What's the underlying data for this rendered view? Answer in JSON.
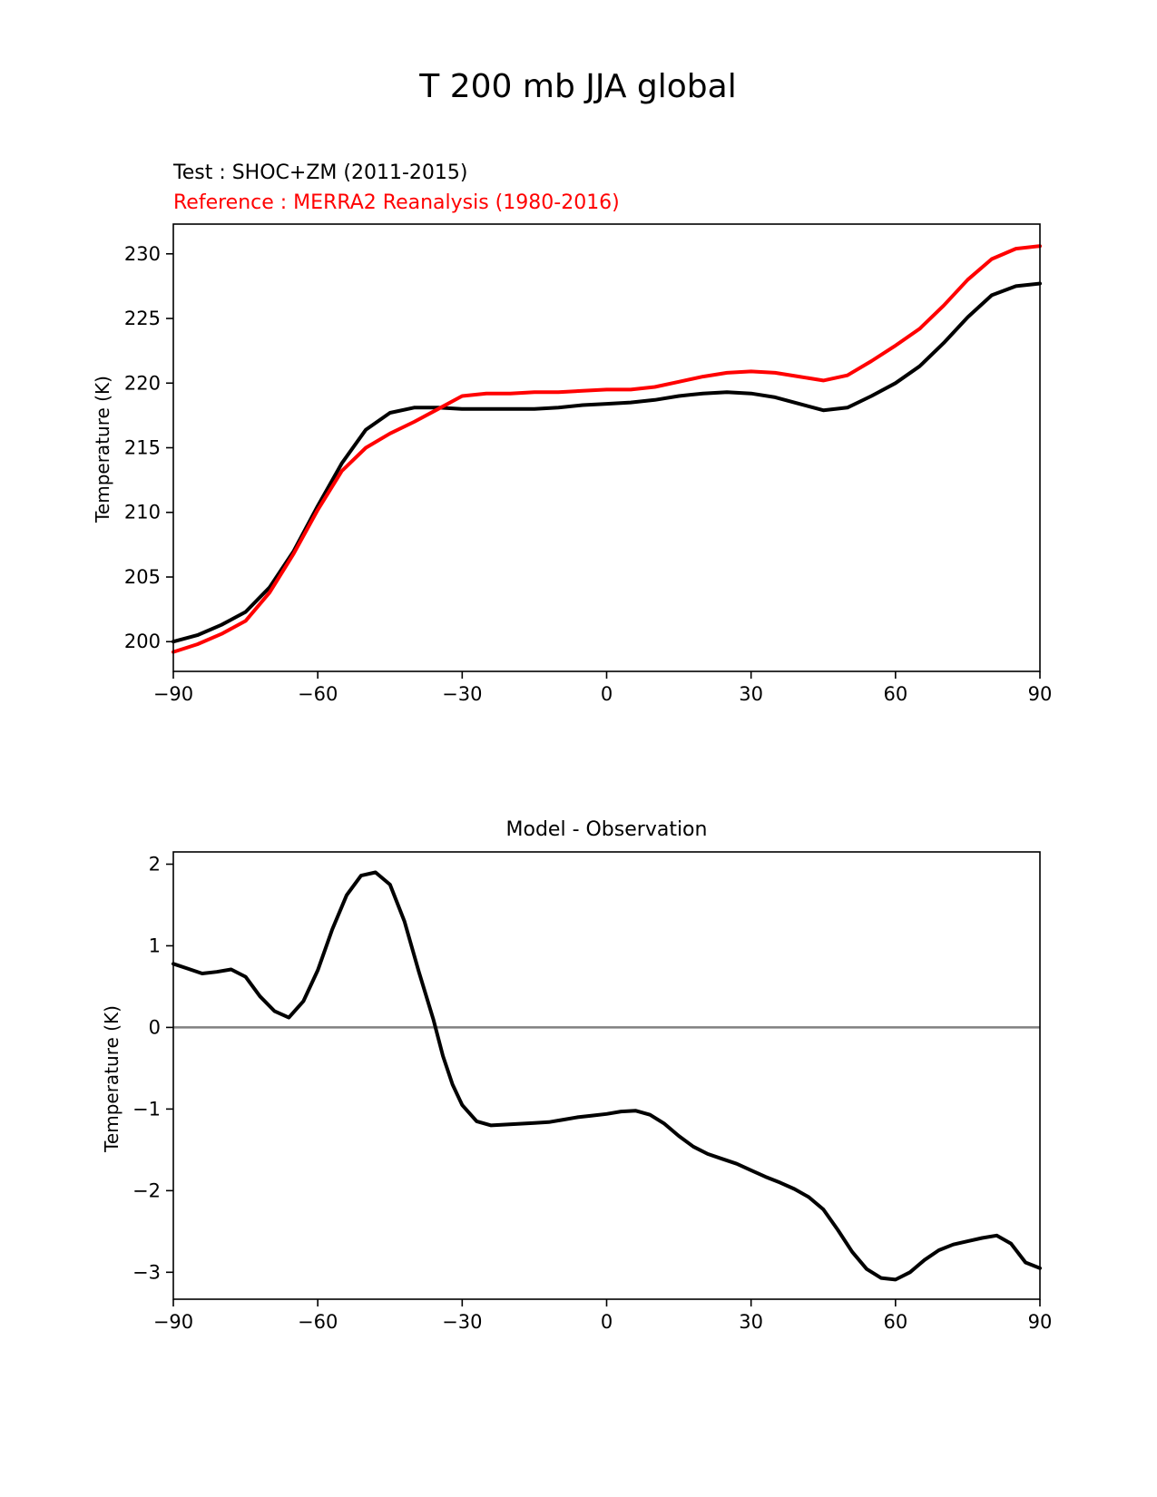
{
  "figure": {
    "title": "T 200 mb JJA global"
  },
  "chart_data": [
    {
      "type": "line",
      "legend_test": "Test : SHOC+ZM (2011-2015)",
      "legend_ref": "Reference : MERRA2 Reanalysis (1980-2016)",
      "title": "",
      "xlabel": "",
      "ylabel": "Temperature (K)",
      "xlim": [
        -90,
        90
      ],
      "ylim": [
        197.7,
        232.3
      ],
      "xticks": [
        -90,
        -60,
        -30,
        0,
        30,
        60,
        90
      ],
      "xtick_labels": [
        "−90",
        "−60",
        "−30",
        "0",
        "30",
        "60",
        "90"
      ],
      "yticks": [
        200,
        205,
        210,
        215,
        220,
        225,
        230
      ],
      "ytick_labels": [
        "200",
        "205",
        "210",
        "215",
        "220",
        "225",
        "230"
      ],
      "grid": false,
      "series": [
        {
          "name": "Test",
          "color": "#000000",
          "x": [
            -90,
            -85,
            -80,
            -75,
            -70,
            -65,
            -60,
            -55,
            -50,
            -45,
            -40,
            -35,
            -30,
            -25,
            -20,
            -15,
            -10,
            -5,
            0,
            5,
            10,
            15,
            20,
            25,
            30,
            35,
            40,
            45,
            50,
            55,
            60,
            65,
            70,
            75,
            80,
            85,
            90
          ],
          "values": [
            200.0,
            200.5,
            201.3,
            202.3,
            204.2,
            207.0,
            210.5,
            213.8,
            216.4,
            217.7,
            218.1,
            218.1,
            218.0,
            218.0,
            218.0,
            218.0,
            218.1,
            218.3,
            218.4,
            218.5,
            218.7,
            219.0,
            219.2,
            219.3,
            219.2,
            218.9,
            218.4,
            217.9,
            218.1,
            219.0,
            220.0,
            221.3,
            223.1,
            225.1,
            226.8,
            227.5,
            227.7
          ]
        },
        {
          "name": "Reference",
          "color": "#ff0000",
          "x": [
            -90,
            -85,
            -80,
            -75,
            -70,
            -65,
            -60,
            -55,
            -50,
            -45,
            -40,
            -35,
            -30,
            -25,
            -20,
            -15,
            -10,
            -5,
            0,
            5,
            10,
            15,
            20,
            25,
            30,
            35,
            40,
            45,
            50,
            55,
            60,
            65,
            70,
            75,
            80,
            85,
            90
          ],
          "values": [
            199.2,
            199.8,
            200.6,
            201.6,
            203.8,
            206.8,
            210.2,
            213.2,
            215.0,
            216.1,
            217.0,
            218.0,
            219.0,
            219.2,
            219.2,
            219.3,
            219.3,
            219.4,
            219.5,
            219.5,
            219.7,
            220.1,
            220.5,
            220.8,
            220.9,
            220.8,
            220.5,
            220.2,
            220.6,
            221.7,
            222.9,
            224.2,
            226.0,
            228.0,
            229.6,
            230.4,
            230.6
          ]
        }
      ]
    },
    {
      "type": "line",
      "title": "Model - Observation",
      "xlabel": "",
      "ylabel": "Temperature (K)",
      "xlim": [
        -90,
        90
      ],
      "ylim": [
        -3.33,
        2.15
      ],
      "xticks": [
        -90,
        -60,
        -30,
        0,
        30,
        60,
        90
      ],
      "xtick_labels": [
        "−90",
        "−60",
        "−30",
        "0",
        "30",
        "60",
        "90"
      ],
      "yticks": [
        -3,
        -2,
        -1,
        0,
        1,
        2
      ],
      "ytick_labels": [
        "−3",
        "−2",
        "−1",
        "0",
        "1",
        "2"
      ],
      "grid": false,
      "zero_line_color": "#808080",
      "series": [
        {
          "name": "Model - Observation",
          "color": "#000000",
          "x": [
            -90,
            -87,
            -84,
            -81,
            -78,
            -75,
            -72,
            -69,
            -66,
            -63,
            -60,
            -57,
            -54,
            -51,
            -48,
            -45,
            -42,
            -39,
            -36,
            -34,
            -32,
            -30,
            -27,
            -24,
            -21,
            -18,
            -15,
            -12,
            -9,
            -6,
            -3,
            0,
            3,
            6,
            9,
            12,
            15,
            18,
            21,
            24,
            27,
            30,
            33,
            36,
            39,
            42,
            45,
            48,
            51,
            54,
            57,
            60,
            63,
            66,
            69,
            72,
            75,
            78,
            81,
            84,
            87,
            90
          ],
          "values": [
            0.78,
            0.72,
            0.66,
            0.68,
            0.71,
            0.62,
            0.38,
            0.2,
            0.12,
            0.32,
            0.7,
            1.2,
            1.62,
            1.86,
            1.9,
            1.75,
            1.3,
            0.68,
            0.1,
            -0.35,
            -0.7,
            -0.95,
            -1.15,
            -1.2,
            -1.19,
            -1.18,
            -1.17,
            -1.16,
            -1.13,
            -1.1,
            -1.08,
            -1.06,
            -1.03,
            -1.02,
            -1.07,
            -1.18,
            -1.33,
            -1.46,
            -1.55,
            -1.61,
            -1.67,
            -1.75,
            -1.83,
            -1.9,
            -1.98,
            -2.08,
            -2.23,
            -2.48,
            -2.75,
            -2.96,
            -3.07,
            -3.09,
            -3.0,
            -2.85,
            -2.73,
            -2.66,
            -2.62,
            -2.58,
            -2.55,
            -2.65,
            -2.88,
            -2.95
          ]
        }
      ]
    }
  ]
}
